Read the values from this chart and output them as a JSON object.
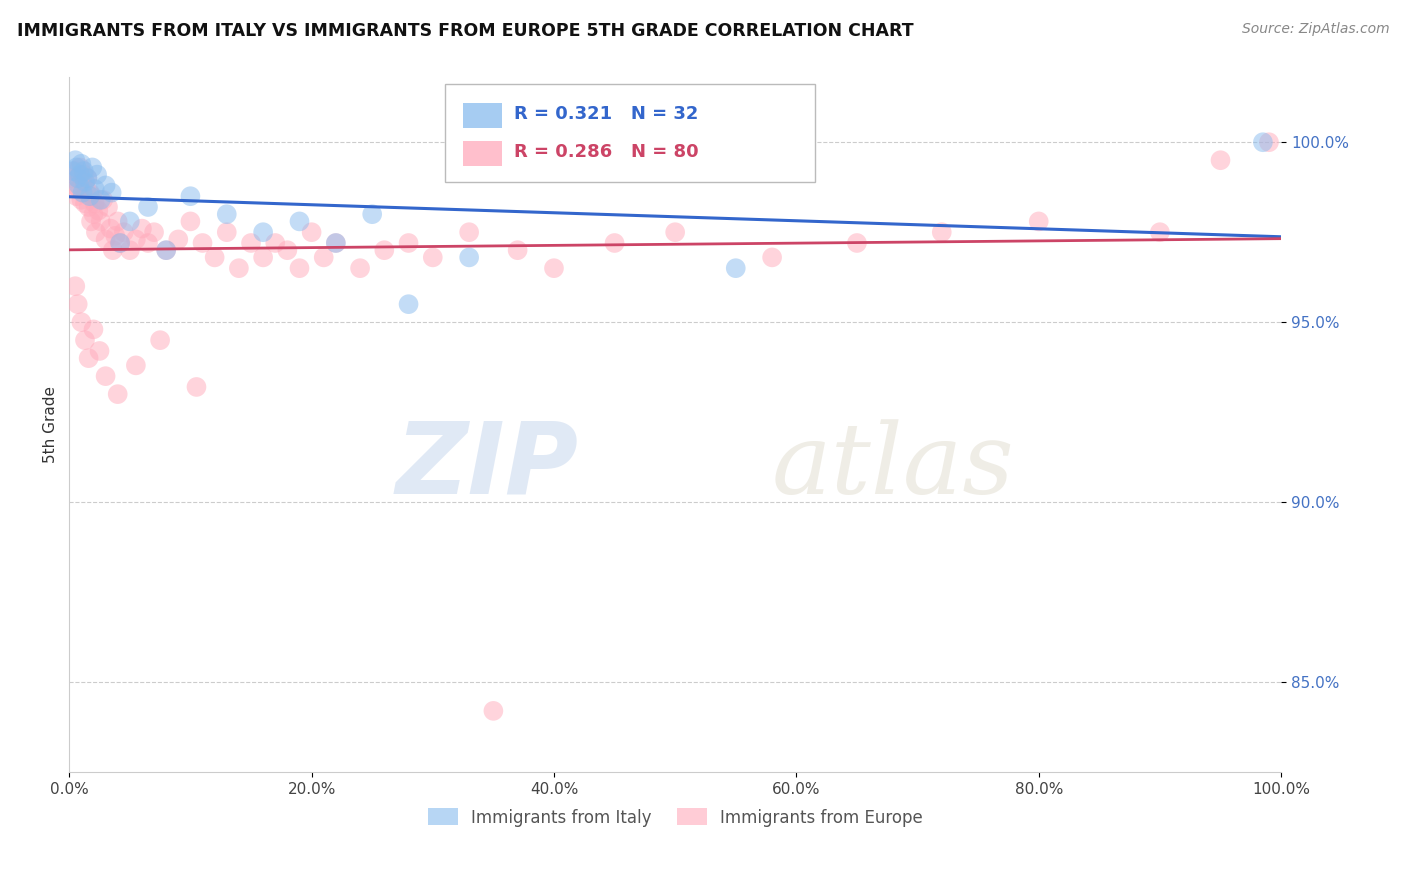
{
  "title": "IMMIGRANTS FROM ITALY VS IMMIGRANTS FROM EUROPE 5TH GRADE CORRELATION CHART",
  "source": "Source: ZipAtlas.com",
  "ylabel": "5th Grade",
  "background_color": "#ffffff",
  "italy_color": "#88bbee",
  "europe_color": "#ffaabb",
  "italy_line_color": "#3366cc",
  "europe_line_color": "#cc4466",
  "italy_R": 0.321,
  "italy_N": 32,
  "europe_R": 0.286,
  "europe_N": 80,
  "xmin": 0.0,
  "xmax": 100.0,
  "ymin": 82.5,
  "ymax": 101.8,
  "yticks": [
    85.0,
    90.0,
    95.0,
    100.0
  ],
  "xticks": [
    0.0,
    20.0,
    40.0,
    60.0,
    80.0,
    100.0
  ],
  "italy_x": [
    0.3,
    0.5,
    0.6,
    0.7,
    0.8,
    0.9,
    1.0,
    1.1,
    1.2,
    1.3,
    1.5,
    1.7,
    1.9,
    2.1,
    2.3,
    2.6,
    3.0,
    3.5,
    4.2,
    5.0,
    6.5,
    8.0,
    10.0,
    13.0,
    16.0,
    19.0,
    22.0,
    25.0,
    28.0,
    33.0,
    55.0,
    98.5
  ],
  "italy_y": [
    99.2,
    99.5,
    99.3,
    99.0,
    98.8,
    99.1,
    99.4,
    98.6,
    99.2,
    98.9,
    99.0,
    98.5,
    99.3,
    98.7,
    99.1,
    98.4,
    98.8,
    98.6,
    97.2,
    97.8,
    98.2,
    97.0,
    98.5,
    98.0,
    97.5,
    97.8,
    97.2,
    98.0,
    95.5,
    96.8,
    96.5,
    100.0
  ],
  "europe_x": [
    0.2,
    0.4,
    0.5,
    0.6,
    0.7,
    0.8,
    0.9,
    1.0,
    1.1,
    1.2,
    1.3,
    1.4,
    1.5,
    1.6,
    1.7,
    1.8,
    1.9,
    2.0,
    2.1,
    2.2,
    2.4,
    2.6,
    2.8,
    3.0,
    3.2,
    3.4,
    3.6,
    3.8,
    4.0,
    4.2,
    4.5,
    5.0,
    5.5,
    6.0,
    6.5,
    7.0,
    8.0,
    9.0,
    10.0,
    11.0,
    12.0,
    13.0,
    14.0,
    15.0,
    16.0,
    17.0,
    18.0,
    19.0,
    20.0,
    21.0,
    22.0,
    24.0,
    26.0,
    28.0,
    30.0,
    33.0,
    37.0,
    40.0,
    45.0,
    50.0,
    58.0,
    65.0,
    72.0,
    80.0,
    90.0,
    95.0,
    99.0,
    0.5,
    0.7,
    1.0,
    1.3,
    1.6,
    2.0,
    2.5,
    3.0,
    4.0,
    5.5,
    7.5,
    10.5,
    35.0
  ],
  "europe_y": [
    99.0,
    98.8,
    99.2,
    98.5,
    99.0,
    98.7,
    99.3,
    98.4,
    98.9,
    99.1,
    98.3,
    98.7,
    99.0,
    98.2,
    98.6,
    97.8,
    98.5,
    98.0,
    98.3,
    97.5,
    98.1,
    97.8,
    98.4,
    97.3,
    98.2,
    97.6,
    97.0,
    97.4,
    97.8,
    97.2,
    97.5,
    97.0,
    97.3,
    97.6,
    97.2,
    97.5,
    97.0,
    97.3,
    97.8,
    97.2,
    96.8,
    97.5,
    96.5,
    97.2,
    96.8,
    97.2,
    97.0,
    96.5,
    97.5,
    96.8,
    97.2,
    96.5,
    97.0,
    97.2,
    96.8,
    97.5,
    97.0,
    96.5,
    97.2,
    97.5,
    96.8,
    97.2,
    97.5,
    97.8,
    97.5,
    99.5,
    100.0,
    96.0,
    95.5,
    95.0,
    94.5,
    94.0,
    94.8,
    94.2,
    93.5,
    93.0,
    93.8,
    94.5,
    93.2,
    84.2
  ],
  "watermark_zip": "ZIP",
  "watermark_atlas": "atlas"
}
